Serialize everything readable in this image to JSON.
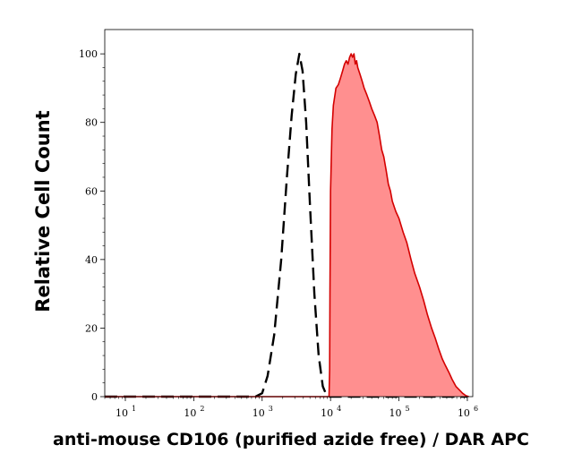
{
  "chart_data": {
    "type": "area",
    "xlabel": "anti-mouse CD106 (purified azide free) / DAR APC",
    "ylabel": "Relative Cell Count",
    "x_scale": "log",
    "xlim": [
      5,
      1200000
    ],
    "ylim": [
      0,
      105
    ],
    "x_ticks": [
      {
        "value": 10,
        "base": "10",
        "exp": "1"
      },
      {
        "value": 100,
        "base": "10",
        "exp": "2"
      },
      {
        "value": 1000,
        "base": "10",
        "exp": "3"
      },
      {
        "value": 10000,
        "base": "10",
        "exp": "4"
      },
      {
        "value": 100000,
        "base": "10",
        "exp": "5"
      },
      {
        "value": 1000000,
        "base": "10",
        "exp": "6"
      }
    ],
    "y_ticks": [
      0,
      20,
      40,
      60,
      80,
      100
    ],
    "grid": false,
    "series": [
      {
        "style": "dashed",
        "color": "#000000",
        "fill": "none",
        "x": [
          5,
          800,
          1000,
          1200,
          1500,
          1900,
          2300,
          2700,
          3100,
          3500,
          3900,
          4400,
          5000,
          5800,
          6700,
          7700,
          8700,
          9800,
          12000,
          1000000
        ],
        "y": [
          0,
          0,
          1,
          6,
          18,
          40,
          64,
          82,
          94,
          100,
          95,
          80,
          56,
          30,
          12,
          3,
          0.5,
          0,
          0,
          0
        ]
      },
      {
        "style": "solid",
        "color": "#d40000",
        "fill": "#ff8f8f",
        "x": [
          5,
          9500,
          9700,
          9800,
          10000,
          10500,
          11000,
          12000,
          13000,
          14000,
          15000,
          16000,
          17000,
          18000,
          19000,
          20000,
          21000,
          22000,
          23000,
          24000,
          25000,
          27000,
          29000,
          31000,
          34000,
          37000,
          40000,
          44000,
          48000,
          52000,
          56000,
          60000,
          65000,
          70000,
          75000,
          80000,
          90000,
          100000,
          115000,
          130000,
          150000,
          170000,
          200000,
          230000,
          260000,
          300000,
          340000,
          380000,
          430000,
          480000,
          540000,
          600000,
          680000,
          760000,
          850000,
          950000,
          1050000
        ],
        "y": [
          0,
          0,
          8,
          30,
          60,
          78,
          85,
          90,
          91,
          93,
          95,
          97,
          98,
          97,
          99,
          100,
          99,
          100,
          97,
          98,
          96,
          94,
          92,
          90,
          88,
          86,
          84,
          82,
          80,
          76,
          72,
          70,
          66,
          62,
          60,
          57,
          54,
          52,
          48,
          45,
          40,
          36,
          32,
          28,
          24,
          20,
          17,
          14,
          11,
          9,
          7,
          5,
          3,
          2,
          1,
          0.3,
          0
        ]
      }
    ]
  }
}
